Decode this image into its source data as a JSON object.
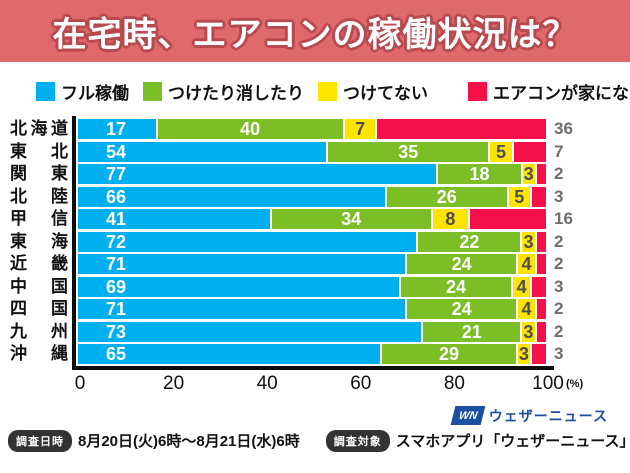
{
  "title": "在宅時、エアコンの稼働状況は？",
  "colors": {
    "blue": "#00aff0",
    "green": "#7cbe26",
    "yellow": "#ffe400",
    "red": "#f5104a",
    "banner": "#e0696d",
    "axis": "#0d0d0d",
    "outside_number": "#6e6e6e",
    "logo_blue": "#1c4fa1"
  },
  "legend": [
    {
      "label": "フル稼働",
      "color": "blue"
    },
    {
      "label": "つけたり消したり",
      "color": "green"
    },
    {
      "label": "つけてない",
      "color": "yellow"
    },
    {
      "label": "エアコンが家にない",
      "color": "red"
    }
  ],
  "chart_data": {
    "type": "bar",
    "orientation": "horizontal-stacked",
    "categories": [
      "北海道",
      "東北",
      "関東",
      "北陸",
      "甲信",
      "東海",
      "近畿",
      "中国",
      "四国",
      "九州",
      "沖縄"
    ],
    "series": [
      {
        "name": "フル稼働",
        "color": "blue",
        "values": [
          17,
          54,
          77,
          66,
          41,
          72,
          71,
          69,
          71,
          73,
          65
        ]
      },
      {
        "name": "つけたり消したり",
        "color": "green",
        "values": [
          40,
          35,
          18,
          26,
          34,
          22,
          24,
          24,
          24,
          21,
          29
        ]
      },
      {
        "name": "つけてない",
        "color": "yellow",
        "values": [
          7,
          5,
          3,
          5,
          8,
          3,
          4,
          4,
          4,
          3,
          3
        ]
      },
      {
        "name": "エアコンが家にない",
        "color": "red",
        "values": [
          36,
          7,
          2,
          3,
          16,
          2,
          2,
          3,
          2,
          2,
          3
        ]
      }
    ],
    "xticks": [
      "0",
      "20",
      "40",
      "60",
      "80",
      "100"
    ],
    "x_unit": "(%)",
    "xlim": [
      0,
      100
    ],
    "value_labels": "inside segments; last series labeled outside right in gray"
  },
  "footer": {
    "logo_mark": "WN",
    "logo_text": "ウェザーニュース",
    "survey_time_label": "調査日時",
    "survey_time": "8月20日(火)6時～8月21日(水)6時",
    "survey_target_label": "調査対象",
    "survey_target": "スマホアプリ「ウェザーニュース」利用者"
  }
}
